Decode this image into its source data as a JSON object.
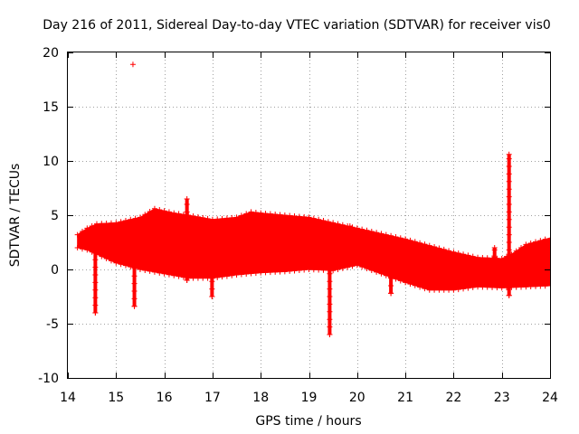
{
  "chart_data": {
    "type": "scatter",
    "title": "Day 216 of 2011, Sidereal Day-to-day VTEC variation (SDTVAR) for receiver vis0",
    "xlabel": "GPS time / hours",
    "ylabel": "SDTVAR / TECUs",
    "xlim": [
      14,
      24
    ],
    "ylim": [
      -10,
      20
    ],
    "xticks": [
      "14",
      "15",
      "16",
      "17",
      "18",
      "19",
      "20",
      "21",
      "22",
      "23",
      "24"
    ],
    "yticks": [
      "-10",
      "-5",
      "0",
      "5",
      "10",
      "15",
      "20"
    ],
    "grid": true,
    "series_color": "#ff0000",
    "series": [
      {
        "name": "SDTVAR",
        "upper_envelope": [
          [
            14.2,
            3.2
          ],
          [
            14.4,
            3.8
          ],
          [
            14.6,
            4.2
          ],
          [
            15.0,
            4.3
          ],
          [
            15.5,
            4.8
          ],
          [
            15.8,
            5.6
          ],
          [
            16.2,
            5.2
          ],
          [
            16.5,
            5.0
          ],
          [
            17.0,
            4.6
          ],
          [
            17.5,
            4.8
          ],
          [
            17.8,
            5.3
          ],
          [
            18.0,
            5.2
          ],
          [
            18.5,
            5.0
          ],
          [
            19.0,
            4.8
          ],
          [
            19.5,
            4.3
          ],
          [
            20.0,
            3.8
          ],
          [
            20.5,
            3.3
          ],
          [
            21.0,
            2.8
          ],
          [
            21.5,
            2.2
          ],
          [
            22.0,
            1.6
          ],
          [
            22.5,
            1.1
          ],
          [
            23.0,
            1.0
          ],
          [
            23.2,
            1.4
          ],
          [
            23.5,
            2.3
          ],
          [
            24.0,
            2.9
          ]
        ],
        "lower_envelope": [
          [
            14.2,
            2.0
          ],
          [
            14.4,
            1.8
          ],
          [
            14.6,
            1.4
          ],
          [
            15.0,
            0.6
          ],
          [
            15.5,
            0.0
          ],
          [
            16.0,
            -0.4
          ],
          [
            16.5,
            -0.8
          ],
          [
            17.0,
            -0.8
          ],
          [
            17.5,
            -0.5
          ],
          [
            18.0,
            -0.3
          ],
          [
            18.5,
            -0.2
          ],
          [
            19.0,
            0.0
          ],
          [
            19.5,
            -0.1
          ],
          [
            20.0,
            0.4
          ],
          [
            20.5,
            -0.4
          ],
          [
            21.0,
            -1.2
          ],
          [
            21.5,
            -1.9
          ],
          [
            22.0,
            -1.9
          ],
          [
            22.5,
            -1.6
          ],
          [
            23.0,
            -1.7
          ],
          [
            23.5,
            -1.6
          ],
          [
            24.0,
            -1.5
          ]
        ],
        "spikes": [
          {
            "x": 14.57,
            "top": 1.5,
            "bottom": -4.0
          },
          {
            "x": 15.38,
            "top": 1.0,
            "bottom": -3.4
          },
          {
            "x": 16.47,
            "top": 6.5,
            "bottom": -1.0
          },
          {
            "x": 16.99,
            "top": 2.0,
            "bottom": -2.5
          },
          {
            "x": 19.43,
            "top": 0.0,
            "bottom": -6.0
          },
          {
            "x": 20.7,
            "top": 2.0,
            "bottom": -2.2
          },
          {
            "x": 22.85,
            "top": 2.0,
            "bottom": -1.0
          },
          {
            "x": 23.15,
            "top": 10.6,
            "bottom": -2.4
          }
        ],
        "outliers": [
          [
            15.35,
            18.9
          ],
          [
            19.85,
            4.0
          ]
        ]
      }
    ]
  }
}
